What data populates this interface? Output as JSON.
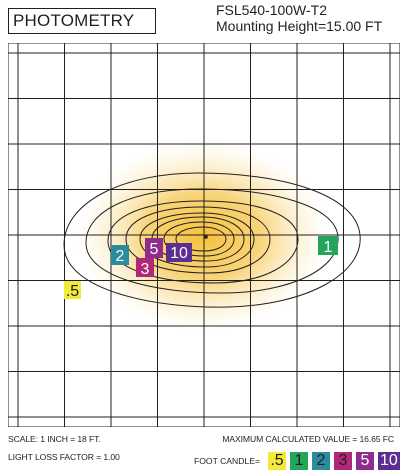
{
  "header": {
    "title": "PHOTOMETRY",
    "fixture_model": "FSL540-100W-T2",
    "mounting_height": "Mounting Height=15.00 FT"
  },
  "plot": {
    "grid_columns": 8,
    "grid_rows": 8,
    "contour_count": 8,
    "glow_color": "#f4c247",
    "contour_color": "#231f20"
  },
  "labels": [
    {
      "text": "2",
      "fill": "#2a8c9c",
      "text_color": "#ffffff"
    },
    {
      "text": "5",
      "fill": "#8e2d8e",
      "text_color": "#ffffff"
    },
    {
      "text": "10",
      "fill": "#5b2e8f",
      "text_color": "#ffffff"
    },
    {
      "text": "3",
      "fill": "#b1287a",
      "text_color": "#ffffff"
    },
    {
      "text": "1",
      "fill": "#23a55a",
      "text_color": "#ffffff"
    },
    {
      "text": ".5",
      "fill": "#f2ea3a",
      "text_color": "#231f20"
    }
  ],
  "footer": {
    "scale": "SCALE: 1 INCH = 18 FT.",
    "light_loss": "LIGHT LOSS FACTOR = 1.00",
    "max_value": "MAXIMUM CALCULATED VALUE = 16.65 FC",
    "legend_label": "FOOT CANDLE="
  },
  "legend": [
    {
      "text": ".5",
      "fill": "#f2ea3a",
      "text_color": "#231f20"
    },
    {
      "text": "1",
      "fill": "#23a55a",
      "text_color": "#231f20"
    },
    {
      "text": "2",
      "fill": "#2a8c9c",
      "text_color": "#231f20"
    },
    {
      "text": "3",
      "fill": "#b1287a",
      "text_color": "#231f20"
    },
    {
      "text": "5",
      "fill": "#8e2d8e",
      "text_color": "#ffffff"
    },
    {
      "text": "10",
      "fill": "#5b2e8f",
      "text_color": "#ffffff"
    }
  ]
}
